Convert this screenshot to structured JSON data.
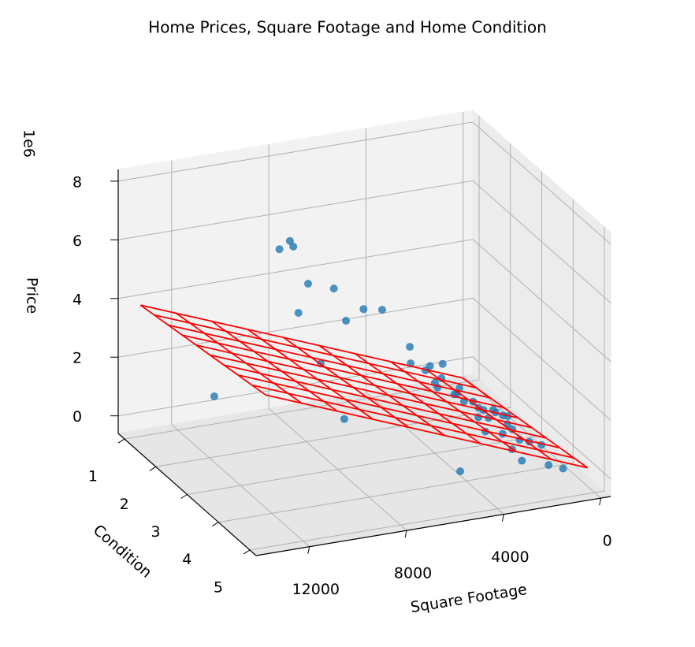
{
  "chart_data": {
    "type": "scatter3d",
    "title": "Home Prices, Square Footage and Home Condition",
    "xlabel": "Square Footage",
    "ylabel": "Condition",
    "zlabel": "Price",
    "z_offset_label": "1e6",
    "xlim": [
      -400,
      14200
    ],
    "ylim": [
      0.8,
      5.2
    ],
    "zlim": [
      -0.6,
      8.4
    ],
    "xticks": [
      0,
      4000,
      8000,
      12000
    ],
    "yticks": [
      1,
      2,
      3,
      4,
      5
    ],
    "zticks": [
      0,
      2,
      4,
      6,
      8
    ],
    "grid": true,
    "points": {
      "color": "#1f77b4",
      "x": [
        10400,
        9970,
        9830,
        9220,
        8160,
        9620,
        6940,
        6170,
        7660,
        13080,
        8700,
        7730,
        5540,
        5030,
        4390,
        3730,
        3090,
        2430,
        1790,
        2110,
        1200,
        1500,
        1800,
        2000,
        2200,
        2500,
        1000,
        1300,
        900,
        2800,
        3200,
        3500,
        4000,
        4500,
        3000,
        2600,
        1700,
        1100,
        2300,
        4200,
        5000,
        1600,
        1900,
        2100,
        1400
      ],
      "y": [
        3,
        3,
        3,
        3,
        3,
        3,
        3,
        3,
        3,
        3,
        3,
        3,
        5,
        3,
        3,
        3,
        3,
        3,
        3,
        4,
        3,
        3,
        4,
        3,
        3,
        4,
        3,
        5,
        4,
        3,
        3,
        4,
        3,
        5,
        5,
        2,
        2,
        1,
        4,
        3,
        3,
        3,
        5,
        4,
        4
      ],
      "z": [
        7.24,
        7.46,
        7.25,
        5.9,
        5.59,
        4.96,
        4.72,
        4.59,
        4.42,
        2.59,
        3.11,
        1.08,
        0.89,
        3.17,
        2.28,
        1.92,
        1.29,
        0.94,
        0.3,
        0.22,
        0.3,
        0.45,
        0.5,
        0.6,
        0.7,
        0.8,
        0.25,
        0.4,
        0.2,
        1.0,
        1.3,
        1.5,
        1.8,
        2.1,
        0.9,
        0.5,
        0.35,
        0.15,
        1.1,
        2.4,
        2.6,
        0.55,
        0.6,
        0.9,
        0.38
      ]
    },
    "surface": {
      "color": "#ff0000",
      "x": [
        290,
        1762,
        3234,
        4707,
        6179,
        7651,
        9123,
        10596,
        12068,
        13540
      ],
      "y": [
        1,
        1.44,
        1.89,
        2.33,
        2.78,
        3.22,
        3.67,
        4.11,
        4.56,
        5
      ],
      "z": [
        [
          -0.436,
          -0.356,
          -0.276,
          -0.196,
          -0.116,
          -0.036,
          0.044,
          0.124,
          0.204,
          0.284
        ],
        [
          0.043,
          0.123,
          0.203,
          0.283,
          0.363,
          0.443,
          0.523,
          0.603,
          0.683,
          0.763
        ],
        [
          0.521,
          0.601,
          0.681,
          0.761,
          0.841,
          0.921,
          1.001,
          1.081,
          1.161,
          1.241
        ],
        [
          1.0,
          1.08,
          1.16,
          1.24,
          1.32,
          1.4,
          1.48,
          1.56,
          1.64,
          1.72
        ],
        [
          1.478,
          1.558,
          1.638,
          1.718,
          1.798,
          1.878,
          1.958,
          2.038,
          2.118,
          2.198
        ],
        [
          1.957,
          2.037,
          2.117,
          2.197,
          2.277,
          2.357,
          2.437,
          2.517,
          2.597,
          2.677
        ],
        [
          2.435,
          2.515,
          2.595,
          2.675,
          2.755,
          2.835,
          2.915,
          2.995,
          3.075,
          3.155
        ],
        [
          2.914,
          2.994,
          3.074,
          3.154,
          3.234,
          3.314,
          3.394,
          3.474,
          3.554,
          3.634
        ],
        [
          3.392,
          3.472,
          3.552,
          3.632,
          3.712,
          3.792,
          3.872,
          3.952,
          4.032,
          4.112
        ],
        [
          3.871,
          3.951,
          4.031,
          4.111,
          4.191,
          4.271,
          4.351,
          4.431,
          4.511,
          4.591
        ]
      ]
    }
  }
}
